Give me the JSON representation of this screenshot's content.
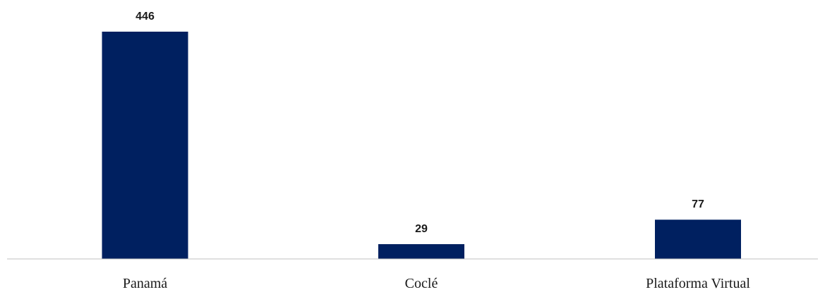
{
  "chart_data": {
    "type": "bar",
    "categories": [
      "Panamá",
      "Coclé",
      "Plataforma Virtual"
    ],
    "values": [
      446,
      29,
      77
    ],
    "data_labels": [
      "446",
      "29",
      "77"
    ],
    "title": "",
    "xlabel": "",
    "ylabel": "",
    "ylim": [
      0,
      446
    ],
    "grid": false,
    "legend": "none",
    "bar_color": "#002060",
    "axis_color": "#bfbfbf"
  }
}
